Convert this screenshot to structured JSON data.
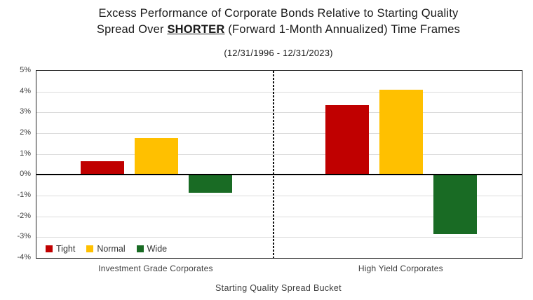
{
  "title": {
    "line1": "Excess Performance of Corporate Bonds Relative to Starting Quality",
    "line2_pre": "Spread Over ",
    "line2_em": "SHORTER",
    "line2_post": " (Forward 1-Month Annualized) Time Frames"
  },
  "subtitle": "(12/31/1996 - 12/31/2023)",
  "chart_data": {
    "type": "bar",
    "title": "Excess Performance of Corporate Bonds Relative to Starting Quality Spread Over SHORTER (Forward 1-Month Annualized) Time Frames",
    "subtitle": "(12/31/1996 - 12/31/2023)",
    "categories": [
      "Investment Grade Corporates",
      "High Yield Corporates"
    ],
    "series": [
      {
        "name": "Tight",
        "color": "#C00000",
        "values": [
          0.65,
          3.35
        ]
      },
      {
        "name": "Normal",
        "color": "#FFC000",
        "values": [
          1.75,
          4.1
        ]
      },
      {
        "name": "Wide",
        "color": "#196B24",
        "values": [
          -0.85,
          -2.85
        ]
      }
    ],
    "xlabel": "Starting Quality Spread Bucket",
    "ylabel": "",
    "ylim": [
      -4,
      5
    ],
    "ytick_step": 1,
    "ytick_suffix": "%",
    "grid": true,
    "legend_position": "inside-bottom-left",
    "group_divider": "dotted-vertical-line-between-categories"
  },
  "colors": {
    "tight": "#C00000",
    "normal": "#FFC000",
    "wide": "#196B24",
    "gridline": "#DCDCDC",
    "zero_axis": "#000000",
    "tick_text": "#404040"
  }
}
